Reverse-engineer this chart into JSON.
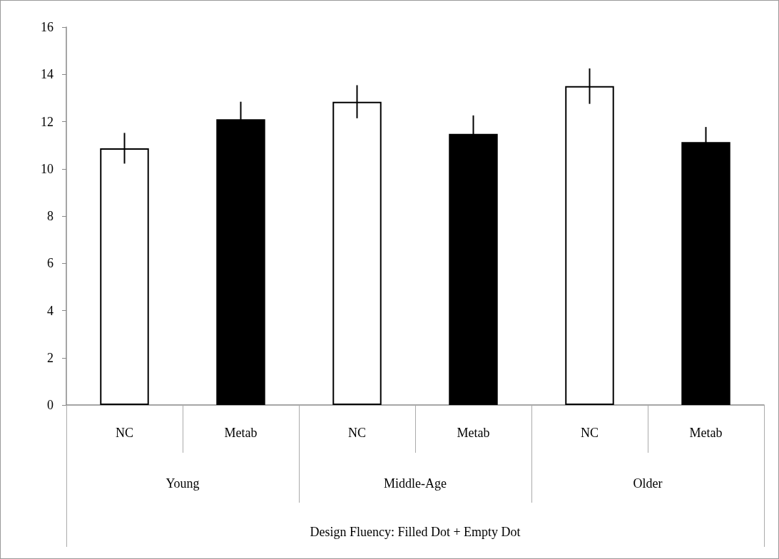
{
  "chart_data": {
    "type": "bar",
    "categories": [
      "NC",
      "Metab",
      "NC",
      "Metab",
      "NC",
      "Metab"
    ],
    "values": [
      10.87,
      12.1,
      12.84,
      11.48,
      13.5,
      11.13
    ],
    "errors": [
      0.65,
      0.74,
      0.7,
      0.78,
      0.75,
      0.64
    ],
    "colors": [
      "#ffffff",
      "#000000",
      "#ffffff",
      "#000000",
      "#ffffff",
      "#000000"
    ],
    "annotations": [
      "Young",
      "Middle-Age",
      "Older",
      "Design Fluency: Filled Dot + Empty Dot"
    ],
    "ylim": [
      0,
      16
    ],
    "yticks": [
      0,
      2,
      4,
      6,
      8,
      10,
      12,
      14,
      16
    ],
    "grid": false
  }
}
